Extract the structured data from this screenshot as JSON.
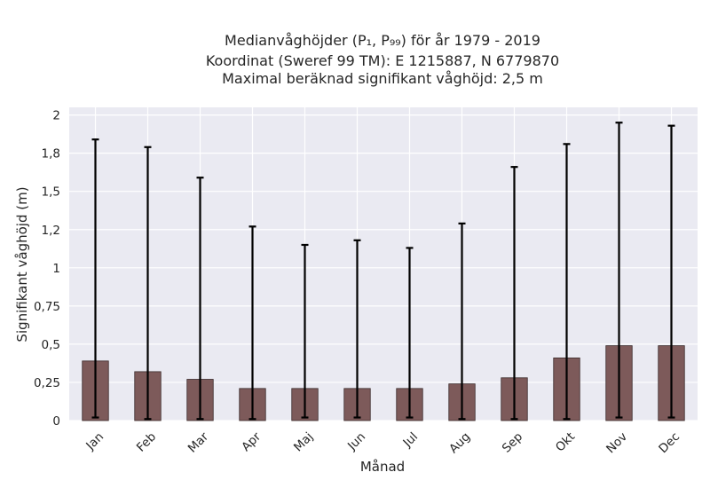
{
  "chart_data": {
    "type": "bar",
    "title_lines": [
      "Medianvåghöjder (P₁, P₉₉) för år 1979 - 2019",
      "Koordinat (Sweref 99 TM): E 1215887, N 6779870",
      "Maximal beräknad signifikant våghöjd: 2,5 m"
    ],
    "xlabel": "Månad",
    "ylabel": "Signifikant våghöjd (m)",
    "categories": [
      "Jan",
      "Feb",
      "Mar",
      "Apr",
      "Maj",
      "Jun",
      "Jul",
      "Aug",
      "Sep",
      "Okt",
      "Nov",
      "Dec"
    ],
    "values": [
      0.39,
      0.32,
      0.27,
      0.21,
      0.21,
      0.21,
      0.21,
      0.24,
      0.28,
      0.41,
      0.49,
      0.49
    ],
    "p1": [
      0.02,
      0.01,
      0.01,
      0.01,
      0.02,
      0.02,
      0.02,
      0.01,
      0.01,
      0.01,
      0.02,
      0.02
    ],
    "p99": [
      1.84,
      1.79,
      1.59,
      1.27,
      1.15,
      1.18,
      1.13,
      1.29,
      1.66,
      1.81,
      1.95,
      1.93
    ],
    "ylim": [
      0,
      2.05
    ],
    "yticks": [
      {
        "value": 0,
        "label": "0"
      },
      {
        "value": 0.25,
        "label": "0,25"
      },
      {
        "value": 0.5,
        "label": "0,5"
      },
      {
        "value": 0.75,
        "label": "0,75"
      },
      {
        "value": 1,
        "label": "1"
      },
      {
        "value": 1.25,
        "label": "1,2"
      },
      {
        "value": 1.5,
        "label": "1,5"
      },
      {
        "value": 1.75,
        "label": "1,8"
      },
      {
        "value": 2,
        "label": "2"
      }
    ],
    "grid": true,
    "colors": {
      "bar": "#7d5a5a",
      "bar_edge": "#3a2a2a",
      "error_bar": "#000000",
      "plot_bg": "#eaeaf2",
      "grid": "#ffffff"
    }
  }
}
